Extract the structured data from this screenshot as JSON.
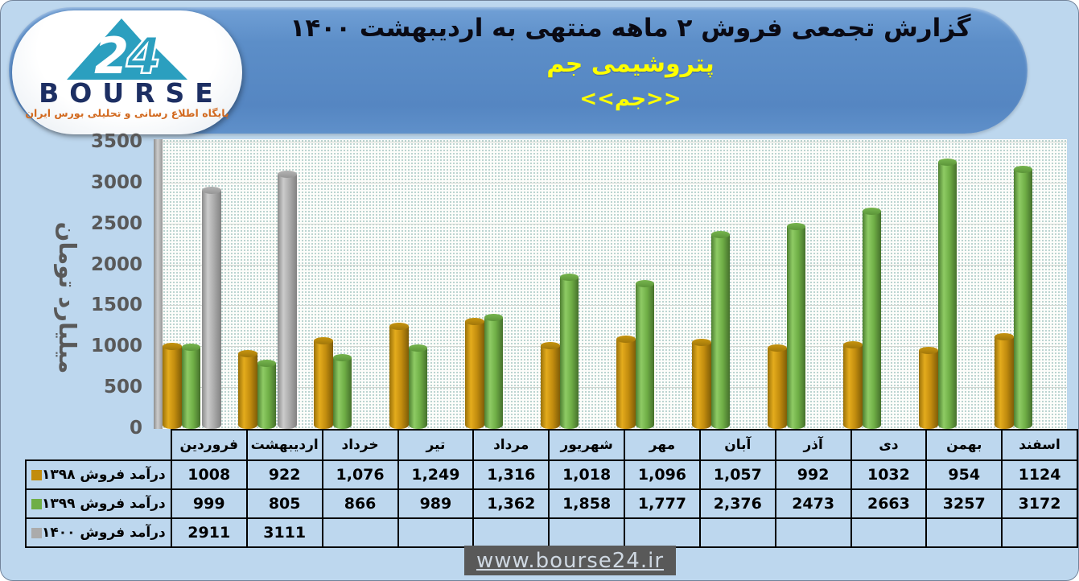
{
  "header": {
    "title": "گزارش تجمعی فروش ۲ ماهه منتهی به اردیبهشت ۱۴۰۰",
    "company": "پتروشیمی جم",
    "symbol": "<<جم>>"
  },
  "logo": {
    "brand": "BOURSE",
    "number": "24",
    "tagline": "پایگاه اطلاع رسانی و تحلیلی بورس ایران"
  },
  "chart_data": {
    "type": "bar",
    "subtype": "3d-cylinder",
    "title": "گزارش تجمعی فروش ۲ ماهه منتهی به اردیبهشت ۱۴۰۰",
    "xlabel": "",
    "ylabel": "میلیارد تومان",
    "ylim": [
      0,
      3500
    ],
    "yticks": [
      0,
      500,
      1000,
      1500,
      2000,
      2500,
      3000,
      3500
    ],
    "grid": true,
    "legend_position": "table-left",
    "categories": [
      "فروردین",
      "اردیبهشت",
      "خرداد",
      "تیر",
      "مرداد",
      "شهریور",
      "مهر",
      "آبان",
      "آذر",
      "دی",
      "بهمن",
      "اسفند"
    ],
    "series": [
      {
        "name": "درآمد فروش ۱۳۹۸",
        "color": "#C28C0E",
        "values": [
          1008,
          922,
          1076,
          1249,
          1316,
          1018,
          1096,
          1057,
          992,
          1032,
          954,
          1124
        ],
        "display": [
          "1008",
          "922",
          "1,076",
          "1,249",
          "1,316",
          "1,018",
          "1,096",
          "1,057",
          "992",
          "1032",
          "954",
          "1124"
        ]
      },
      {
        "name": "درآمد فروش ۱۳۹۹",
        "color": "#6FAE46",
        "values": [
          999,
          805,
          866,
          989,
          1362,
          1858,
          1777,
          2376,
          2473,
          2663,
          3257,
          3172
        ],
        "display": [
          "999",
          "805",
          "866",
          "989",
          "1,362",
          "1,858",
          "1,777",
          "2,376",
          "2473",
          "2663",
          "3257",
          "3172"
        ]
      },
      {
        "name": "درآمد فروش ۱۴۰۰",
        "color": "#ABABAB",
        "values": [
          2911,
          3111,
          null,
          null,
          null,
          null,
          null,
          null,
          null,
          null,
          null,
          null
        ],
        "display": [
          "2911",
          "3111",
          "",
          "",
          "",
          "",
          "",
          "",
          "",
          "",
          "",
          ""
        ]
      }
    ]
  },
  "footer": {
    "url": "www.bourse24.ir"
  }
}
